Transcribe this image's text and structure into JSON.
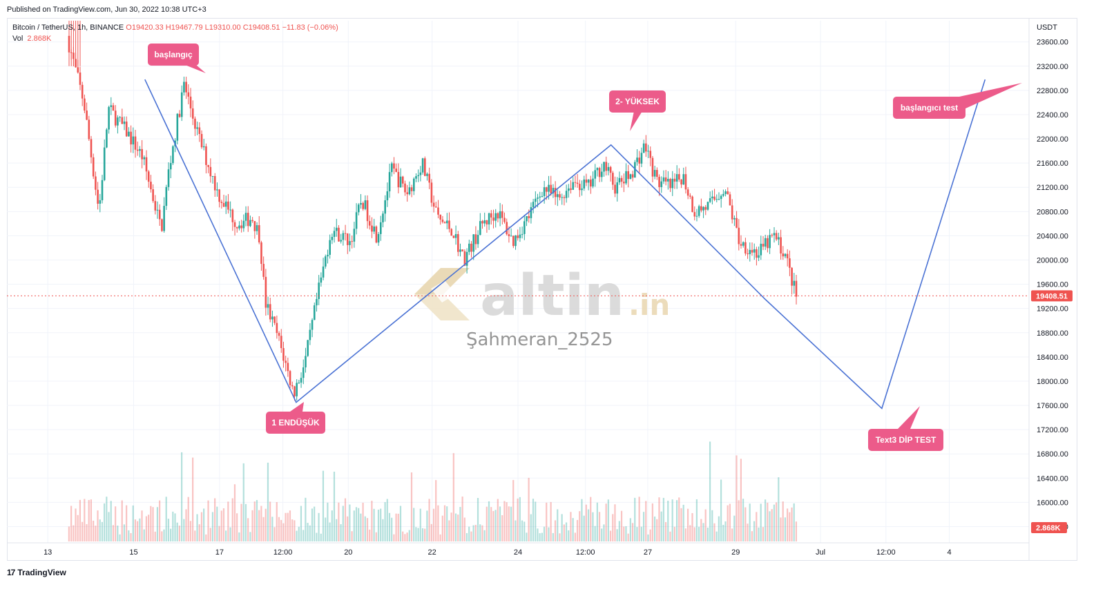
{
  "header": {
    "published": "Published on TradingView.com, Jun 30, 2022 10:38 UTC+3"
  },
  "legend": {
    "symbol": "Bitcoin / TetherUS, 1h, BINANCE",
    "open": "O19420.33",
    "high": "H19467.79",
    "low": "L19310.00",
    "close": "C19408.51",
    "change": "−11.83 (−0.06%)",
    "vol_label": "Vol",
    "vol_value": "2.868K"
  },
  "footer": {
    "logo_mark": "17",
    "brand": "TradingView"
  },
  "watermark": {
    "brand": "altin",
    "suffix": ".in",
    "author": "Şahmeran_2525"
  },
  "colors": {
    "up": "#26a69a",
    "down": "#ef5350",
    "pattern_line": "#4a72d4",
    "callout": "#ec5b8a",
    "price_line": "#ef5350"
  },
  "chart_data": {
    "type": "candlestick",
    "currency": "USDT",
    "y_ticks": [
      15600,
      16000,
      16400,
      16800,
      17200,
      17600,
      18000,
      18400,
      18800,
      19200,
      19600,
      20000,
      20400,
      20800,
      21200,
      21600,
      22000,
      22400,
      22800,
      23200,
      23600
    ],
    "ylim": [
      15400,
      23950
    ],
    "x_ticks": [
      "13",
      "15",
      "17",
      "12:00",
      "20",
      "22",
      "24",
      "12:00",
      "27",
      "29",
      "Jul",
      "12:00",
      "4"
    ],
    "last_price": "19408.51",
    "last_volume": "2.868K",
    "price_path": [
      {
        "t": 0,
        "p": 23700
      },
      {
        "t": 0.045,
        "p": 22600
      },
      {
        "t": 0.085,
        "p": 20800
      },
      {
        "t": 0.11,
        "p": 22500
      },
      {
        "t": 0.16,
        "p": 22100
      },
      {
        "t": 0.2,
        "p": 21700
      },
      {
        "t": 0.25,
        "p": 20500
      },
      {
        "t": 0.27,
        "p": 21500
      },
      {
        "t": 0.31,
        "p": 22900
      },
      {
        "t": 0.35,
        "p": 22000
      },
      {
        "t": 0.4,
        "p": 21100
      },
      {
        "t": 0.45,
        "p": 20600
      },
      {
        "t": 0.49,
        "p": 20700
      },
      {
        "t": 0.51,
        "p": 20400
      },
      {
        "t": 0.525,
        "p": 19300
      },
      {
        "t": 0.56,
        "p": 18700
      },
      {
        "t": 0.6,
        "p": 17800
      },
      {
        "t": 0.63,
        "p": 18300
      },
      {
        "t": 0.66,
        "p": 19300
      },
      {
        "t": 0.7,
        "p": 20500
      },
      {
        "t": 0.75,
        "p": 20300
      },
      {
        "t": 0.78,
        "p": 21000
      },
      {
        "t": 0.82,
        "p": 20400
      },
      {
        "t": 0.86,
        "p": 21500
      },
      {
        "t": 0.9,
        "p": 21100
      },
      {
        "t": 0.94,
        "p": 21600
      },
      {
        "t": 0.98,
        "p": 20700
      },
      {
        "t": 1.02,
        "p": 20500
      },
      {
        "t": 1.05,
        "p": 20000
      },
      {
        "t": 1.1,
        "p": 20600
      },
      {
        "t": 1.14,
        "p": 20800
      },
      {
        "t": 1.18,
        "p": 20300
      },
      {
        "t": 1.22,
        "p": 20700
      },
      {
        "t": 1.26,
        "p": 21200
      },
      {
        "t": 1.3,
        "p": 21000
      },
      {
        "t": 1.34,
        "p": 21300
      },
      {
        "t": 1.38,
        "p": 21200
      },
      {
        "t": 1.42,
        "p": 21600
      },
      {
        "t": 1.45,
        "p": 21200
      },
      {
        "t": 1.49,
        "p": 21400
      },
      {
        "t": 1.53,
        "p": 21900
      },
      {
        "t": 1.56,
        "p": 21300
      },
      {
        "t": 1.6,
        "p": 21200
      },
      {
        "t": 1.63,
        "p": 21400
      },
      {
        "t": 1.66,
        "p": 20800
      },
      {
        "t": 1.7,
        "p": 20900
      },
      {
        "t": 1.74,
        "p": 21200
      },
      {
        "t": 1.78,
        "p": 20300
      },
      {
        "t": 1.83,
        "p": 20100
      },
      {
        "t": 1.87,
        "p": 20400
      },
      {
        "t": 1.9,
        "p": 20100
      },
      {
        "t": 1.93,
        "p": 19400
      }
    ],
    "pattern_points": [
      {
        "label": "başlangıç",
        "x": 0.135,
        "p": 22980
      },
      {
        "label": "1 ENDÜŞÜK",
        "x": 0.283,
        "p": 17650
      },
      {
        "label": "2- YÜKSEK",
        "x": 0.591,
        "p": 21900
      },
      {
        "label": "",
        "x": 0.742,
        "p": 19350
      },
      {
        "label": "Text3 DİP TEST",
        "x": 0.856,
        "p": 17550
      },
      {
        "label": "başlangıcı test",
        "x": 0.957,
        "p": 22980
      }
    ],
    "annotations": [
      "başlangıç",
      "1 ENDÜŞÜK",
      "2- YÜKSEK",
      "başlangıcı test",
      "Text3 DİP TEST"
    ]
  }
}
